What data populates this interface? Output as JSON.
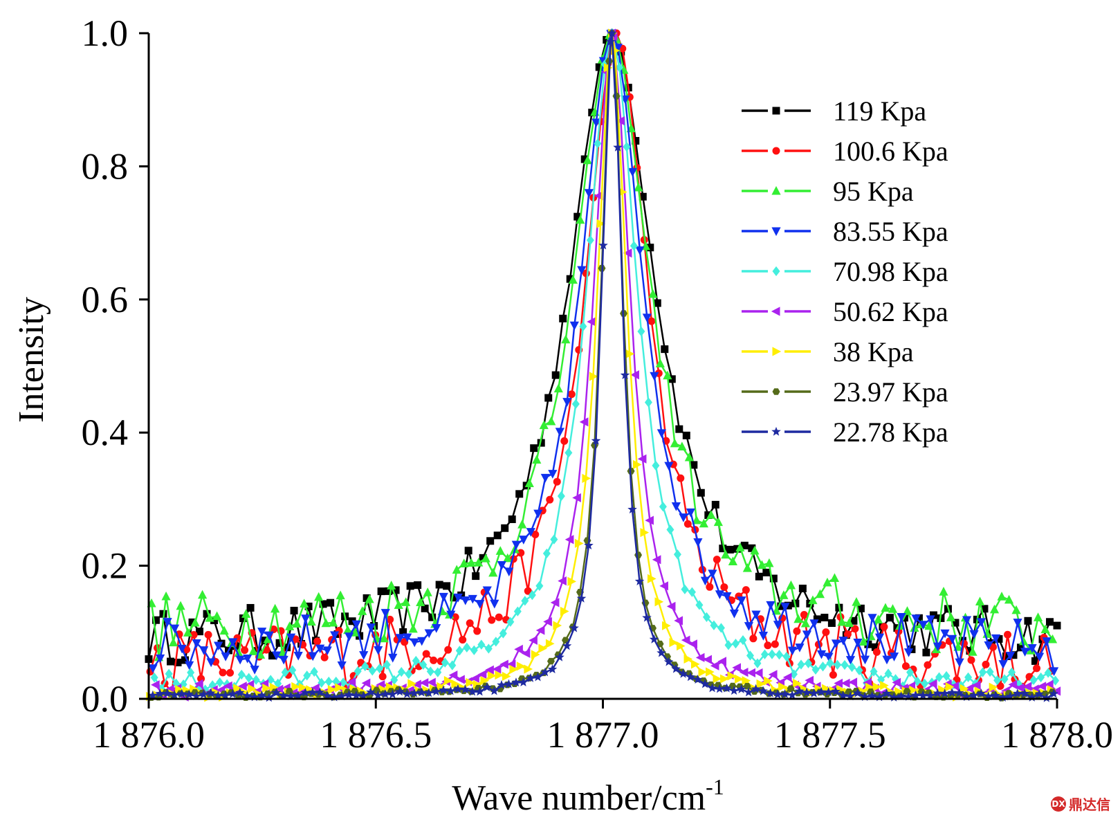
{
  "chart_data": {
    "type": "line",
    "xlabel": "Wave number/cm",
    "xlabel_sup": "-1",
    "ylabel": "Intensity",
    "xlim": [
      1876.0,
      1878.0
    ],
    "ylim": [
      0.0,
      1.0
    ],
    "x_ticks": [
      1876.0,
      1876.5,
      1877.0,
      1877.5,
      1878.0
    ],
    "x_tick_labels": [
      "1 876.0",
      "1 876.5",
      "1 877.0",
      "1 877.5",
      "1 878.0"
    ],
    "y_ticks": [
      0.0,
      0.2,
      0.4,
      0.6,
      0.8,
      1.0
    ],
    "y_tick_labels": [
      "0.0",
      "0.2",
      "0.4",
      "0.6",
      "0.8",
      "1.0"
    ],
    "grid": false,
    "legend_position": "top-right",
    "series": [
      {
        "name": "119 Kpa",
        "color": "#000000",
        "marker": "square",
        "center": 1877.02,
        "width": 0.115,
        "baseline": 0.08,
        "noise": 0.04
      },
      {
        "name": "100.6 Kpa",
        "color": "#ff1010",
        "marker": "circle",
        "center": 1877.03,
        "width": 0.085,
        "baseline": 0.05,
        "noise": 0.05
      },
      {
        "name": "95 Kpa",
        "color": "#33ee33",
        "marker": "triangle-up",
        "center": 1877.02,
        "width": 0.1,
        "baseline": 0.1,
        "noise": 0.05
      },
      {
        "name": "83.55 Kpa",
        "color": "#1030ee",
        "marker": "triangle-down",
        "center": 1877.02,
        "width": 0.085,
        "baseline": 0.07,
        "noise": 0.04
      },
      {
        "name": "70.98 Kpa",
        "color": "#44eedd",
        "marker": "diamond",
        "center": 1877.02,
        "width": 0.07,
        "baseline": 0.02,
        "noise": 0.015
      },
      {
        "name": "50.62 Kpa",
        "color": "#aa22ee",
        "marker": "triangle-left",
        "center": 1877.02,
        "width": 0.05,
        "baseline": 0.01,
        "noise": 0.01
      },
      {
        "name": "38 Kpa",
        "color": "#ffee00",
        "marker": "triangle-right",
        "center": 1877.02,
        "width": 0.04,
        "baseline": 0.008,
        "noise": 0.008
      },
      {
        "name": "23.97 Kpa",
        "color": "#556b1a",
        "marker": "hexagon",
        "center": 1877.02,
        "width": 0.03,
        "baseline": 0.005,
        "noise": 0.005
      },
      {
        "name": "22.78 Kpa",
        "color": "#1e2aa0",
        "marker": "star",
        "center": 1877.02,
        "width": 0.028,
        "baseline": 0.004,
        "noise": 0.004
      }
    ],
    "x_step": 0.016
  },
  "watermark": {
    "text": "鼎达信",
    "logo_text": "DX"
  }
}
